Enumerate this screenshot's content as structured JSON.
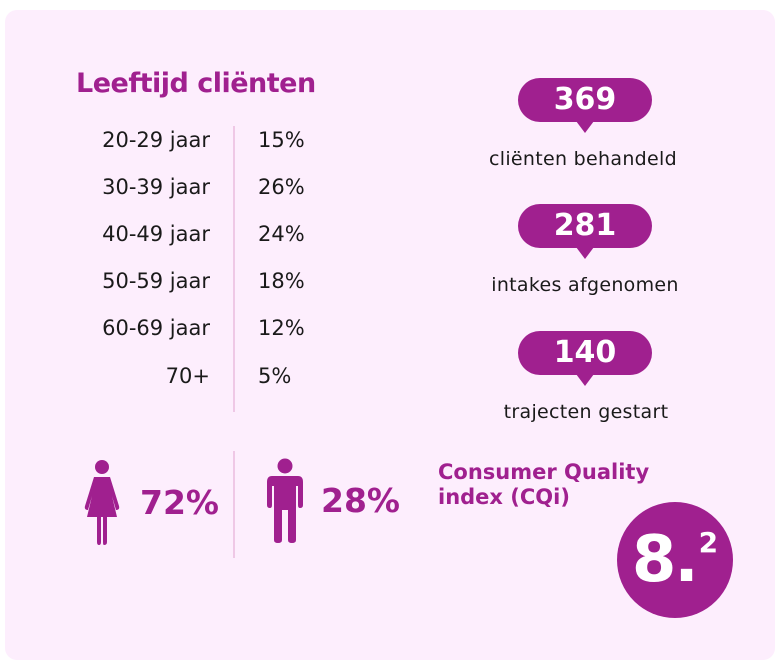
{
  "age": {
    "title": "Leeftijd cliënten",
    "rows": [
      {
        "range": "20-29 jaar",
        "pct": "15%"
      },
      {
        "range": "30-39 jaar",
        "pct": "26%"
      },
      {
        "range": "40-49 jaar",
        "pct": "24%"
      },
      {
        "range": "50-59 jaar",
        "pct": "18%"
      },
      {
        "range": "60-69 jaar",
        "pct": "12%"
      },
      {
        "range": "70+",
        "pct": "5%"
      }
    ]
  },
  "gender": {
    "female": {
      "icon": "female-icon",
      "pct": "72%"
    },
    "male": {
      "icon": "male-icon",
      "pct": "28%"
    }
  },
  "stats": [
    {
      "value": "369",
      "label": "cliënten behandeld"
    },
    {
      "value": "281",
      "label": "intakes afgenomen"
    },
    {
      "value": "140",
      "label": "trajecten gestart"
    }
  ],
  "cqi": {
    "title_line1": "Consumer Quality",
    "title_line2": "index (CQi)",
    "score_main": "8.",
    "score_sup": "2"
  },
  "colors": {
    "accent": "#a0208f",
    "background": "#fdeefd",
    "divider": "#efc8e6"
  }
}
